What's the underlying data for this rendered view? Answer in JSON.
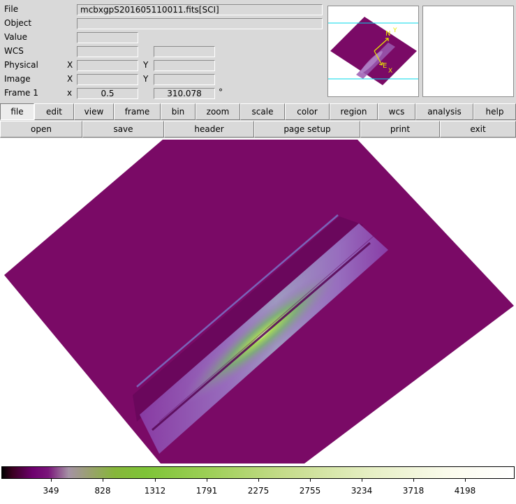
{
  "info": {
    "file_label": "File",
    "file_value": "mcbxgpS201605110011.fits[SCI]",
    "object_label": "Object",
    "object_value": "",
    "value_label": "Value",
    "value_value": "",
    "wcs_label": "WCS",
    "wcs_value_1": "",
    "wcs_value_2": "",
    "physical_label": "Physical",
    "physical_x_label": "X",
    "physical_y_label": "Y",
    "physical_x": "",
    "physical_y": "",
    "image_label": "Image",
    "image_x_label": "X",
    "image_y_label": "Y",
    "image_x": "",
    "image_y": "",
    "frame_label": "Frame 1",
    "frame_x_label": "x",
    "frame_zoom": "0.5",
    "frame_angle": "310.078",
    "frame_degree": "°"
  },
  "panner": {
    "north_label": "N",
    "east_label": "E",
    "x_label": "X",
    "y_label": "Y",
    "compass_color": "#e8e800",
    "bbox_color": "#00d8e8"
  },
  "menu": [
    "file",
    "edit",
    "view",
    "frame",
    "bin",
    "zoom",
    "scale",
    "color",
    "region",
    "wcs",
    "analysis",
    "help"
  ],
  "active_menu": "file",
  "buttons": [
    "open",
    "save",
    "header",
    "page setup",
    "print",
    "exit"
  ],
  "image": {
    "background_color": "#7a0a66",
    "colormap": "viridis-like purple-green-white"
  },
  "colorbar": {
    "ticks": [
      "349",
      "828",
      "1312",
      "1791",
      "2275",
      "2755",
      "3234",
      "3718",
      "4198"
    ]
  }
}
